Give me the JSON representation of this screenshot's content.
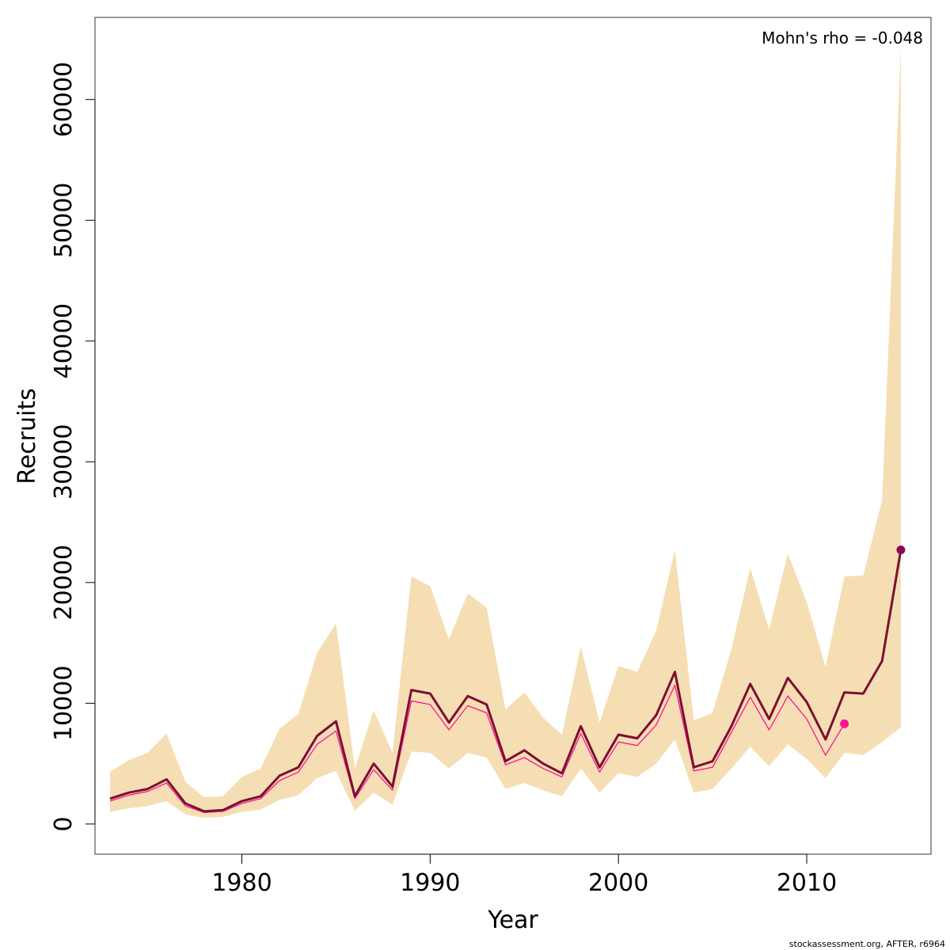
{
  "chart_data": {
    "type": "line",
    "xlabel": "Year",
    "ylabel": "Recruits",
    "xlim": [
      1972.2,
      2016.6
    ],
    "ylim": [
      -2500,
      66800
    ],
    "x_ticks": [
      1980,
      1990,
      2000,
      2010
    ],
    "y_ticks": [
      0,
      10000,
      20000,
      30000,
      40000,
      50000,
      60000
    ],
    "annotation": "Mohn's rho = -0.048",
    "footer": "stockassessment.org, AFTER, r6964",
    "colors": {
      "band": "#f5deb3",
      "main_line": "#7a1030",
      "retro_line": "#ff1493",
      "main_point": "#8b0a50",
      "retro_point": "#ff1493"
    },
    "confidence_band": {
      "x": [
        1973,
        1974,
        1975,
        1976,
        1977,
        1978,
        1979,
        1980,
        1981,
        1982,
        1983,
        1984,
        1985,
        1986,
        1987,
        1988,
        1989,
        1990,
        1991,
        1992,
        1993,
        1994,
        1995,
        1996,
        1997,
        1998,
        1999,
        2000,
        2001,
        2002,
        2003,
        2004,
        2005,
        2006,
        2007,
        2008,
        2009,
        2010,
        2011,
        2012,
        2013,
        2014,
        2015
      ],
      "upper": [
        4300,
        5300,
        5900,
        7500,
        3500,
        2200,
        2300,
        3900,
        4600,
        7900,
        9100,
        14200,
        16600,
        4600,
        9400,
        5900,
        20500,
        19700,
        15300,
        19100,
        17900,
        9500,
        10900,
        8800,
        7400,
        14700,
        8400,
        13100,
        12600,
        16000,
        22700,
        8600,
        9200,
        14500,
        21200,
        16100,
        22400,
        18400,
        13000,
        20500,
        20600,
        26800,
        64300
      ],
      "lower": [
        1000,
        1300,
        1500,
        1900,
        800,
        500,
        600,
        1000,
        1200,
        2000,
        2400,
        3800,
        4400,
        1100,
        2600,
        1600,
        6000,
        5900,
        4600,
        5900,
        5500,
        2900,
        3400,
        2800,
        2300,
        4600,
        2600,
        4200,
        3900,
        5000,
        7000,
        2600,
        2900,
        4600,
        6400,
        4800,
        6600,
        5400,
        3800,
        5900,
        5700,
        6800,
        8000
      ]
    },
    "series": [
      {
        "x": [
          1973,
          1974,
          1975,
          1976,
          1977,
          1978,
          1979,
          1980,
          1981,
          1982,
          1983,
          1984,
          1985,
          1986,
          1987,
          1988,
          1989,
          1990,
          1991,
          1992,
          1993,
          1994,
          1995,
          1996,
          1997,
          1998,
          1999,
          2000,
          2001,
          2002,
          2003,
          2004,
          2005,
          2006,
          2007,
          2008,
          2009,
          2010,
          2011,
          2012,
          2013,
          2014,
          2015
        ],
        "values": [
          2100,
          2600,
          2900,
          3700,
          1700,
          1050,
          1150,
          1900,
          2300,
          4000,
          4700,
          7300,
          8500,
          2300,
          5000,
          3100,
          11100,
          10800,
          8400,
          10600,
          9900,
          5200,
          6100,
          5000,
          4200,
          8100,
          4700,
          7400,
          7100,
          9000,
          12600,
          4700,
          5200,
          8100,
          11600,
          8700,
          12100,
          10100,
          7000,
          10900,
          10800,
          13500,
          22700
        ],
        "end_point": {
          "x": 2015,
          "y": 22700
        }
      },
      {
        "x": [
          1973,
          1974,
          1975,
          1976,
          1977,
          1978,
          1979,
          1980,
          1981,
          1982,
          1983,
          1984,
          1985,
          1986,
          1987,
          1988,
          1989,
          1990,
          1991,
          1992,
          1993,
          1994,
          1995,
          1996,
          1997,
          1998,
          1999,
          2000,
          2001,
          2002,
          2003,
          2004,
          2005,
          2006,
          2007,
          2008,
          2009,
          2010,
          2011,
          2012
        ],
        "values": [
          1900,
          2400,
          2700,
          3400,
          1500,
          950,
          1050,
          1700,
          2100,
          3600,
          4300,
          6600,
          7700,
          2100,
          4500,
          2800,
          10200,
          9900,
          7800,
          9800,
          9200,
          4900,
          5500,
          4600,
          3900,
          7500,
          4300,
          6800,
          6500,
          8200,
          11500,
          4400,
          4700,
          7600,
          10500,
          7800,
          10600,
          8700,
          5700,
          8300
        ],
        "end_point": {
          "x": 2012,
          "y": 8300
        }
      }
    ]
  }
}
